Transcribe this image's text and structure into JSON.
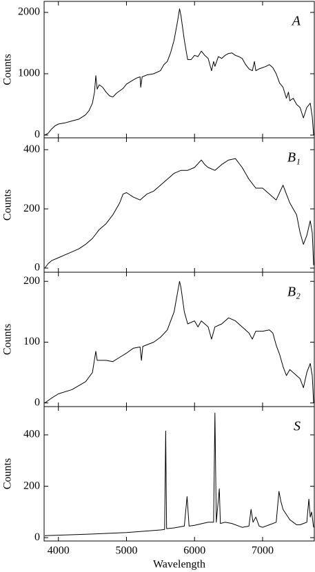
{
  "chart_data": [
    {
      "type": "line",
      "label": "A",
      "ylabel": "Counts",
      "color": "#000000",
      "ylim": [
        -45,
        2180
      ],
      "yticks": [
        0,
        1000,
        2000
      ],
      "xlim": [
        3790,
        7760
      ],
      "x": [
        3800,
        3850,
        3900,
        3950,
        4000,
        4100,
        4200,
        4300,
        4400,
        4450,
        4500,
        4530,
        4550,
        4570,
        4600,
        4650,
        4700,
        4750,
        4800,
        4850,
        4900,
        4950,
        5000,
        5100,
        5150,
        5200,
        5210,
        5230,
        5300,
        5400,
        5500,
        5550,
        5600,
        5650,
        5700,
        5750,
        5780,
        5800,
        5850,
        5880,
        5900,
        5950,
        6000,
        6050,
        6100,
        6150,
        6200,
        6250,
        6280,
        6300,
        6350,
        6400,
        6450,
        6500,
        6550,
        6600,
        6650,
        6700,
        6750,
        6800,
        6850,
        6880,
        6900,
        6950,
        7000,
        7050,
        7100,
        7150,
        7200,
        7250,
        7300,
        7350,
        7380,
        7400,
        7450,
        7500,
        7550,
        7600,
        7650,
        7700,
        7730,
        7750
      ],
      "values": [
        0,
        30,
        100,
        150,
        180,
        200,
        230,
        260,
        330,
        400,
        520,
        700,
        970,
        750,
        820,
        780,
        700,
        640,
        620,
        680,
        720,
        760,
        830,
        900,
        930,
        950,
        780,
        950,
        980,
        1000,
        1050,
        1150,
        1200,
        1350,
        1550,
        1850,
        2060,
        1950,
        1550,
        1350,
        1230,
        1230,
        1300,
        1280,
        1370,
        1300,
        1250,
        1050,
        1200,
        1120,
        1280,
        1250,
        1300,
        1330,
        1340,
        1300,
        1280,
        1250,
        1150,
        1080,
        1050,
        1200,
        1050,
        1080,
        1100,
        1120,
        1150,
        1100,
        1000,
        850,
        780,
        600,
        700,
        560,
        600,
        500,
        450,
        280,
        450,
        520,
        300,
        0
      ]
    },
    {
      "type": "line",
      "label": "B₁",
      "ylabel": "Counts",
      "color": "#000000",
      "ylim": [
        -14,
        440
      ],
      "yticks": [
        0,
        200,
        400
      ],
      "xlim": [
        3790,
        7760
      ],
      "x": [
        3800,
        3850,
        3900,
        4000,
        4100,
        4200,
        4300,
        4400,
        4500,
        4600,
        4700,
        4800,
        4900,
        4950,
        5000,
        5100,
        5200,
        5300,
        5400,
        5500,
        5600,
        5700,
        5800,
        5900,
        6000,
        6100,
        6150,
        6200,
        6300,
        6400,
        6500,
        6600,
        6700,
        6800,
        6900,
        7000,
        7100,
        7200,
        7300,
        7350,
        7400,
        7500,
        7550,
        7600,
        7650,
        7700,
        7730,
        7750
      ],
      "values": [
        0,
        15,
        25,
        35,
        45,
        55,
        65,
        80,
        100,
        130,
        150,
        180,
        220,
        250,
        255,
        240,
        230,
        250,
        260,
        280,
        300,
        320,
        330,
        330,
        340,
        365,
        350,
        340,
        330,
        350,
        365,
        370,
        340,
        300,
        270,
        270,
        250,
        230,
        280,
        250,
        220,
        180,
        120,
        80,
        110,
        160,
        120,
        10
      ]
    },
    {
      "type": "line",
      "label": "B₂",
      "ylabel": "Counts",
      "color": "#000000",
      "ylim": [
        -6,
        215
      ],
      "yticks": [
        0,
        100,
        200
      ],
      "xlim": [
        3790,
        7760
      ],
      "x": [
        3800,
        3900,
        4000,
        4200,
        4400,
        4500,
        4550,
        4570,
        4600,
        4700,
        4800,
        4900,
        5000,
        5100,
        5200,
        5220,
        5240,
        5400,
        5500,
        5600,
        5700,
        5780,
        5800,
        5850,
        5900,
        6000,
        6050,
        6100,
        6200,
        6250,
        6300,
        6400,
        6500,
        6600,
        6700,
        6800,
        6850,
        6900,
        7000,
        7100,
        7150,
        7200,
        7250,
        7300,
        7350,
        7400,
        7500,
        7550,
        7600,
        7650,
        7700,
        7730,
        7750
      ],
      "values": [
        0,
        8,
        15,
        22,
        35,
        50,
        85,
        70,
        70,
        70,
        68,
        75,
        82,
        90,
        92,
        70,
        93,
        100,
        108,
        120,
        150,
        200,
        190,
        150,
        130,
        135,
        125,
        135,
        125,
        105,
        125,
        130,
        140,
        135,
        125,
        115,
        105,
        118,
        118,
        120,
        115,
        95,
        80,
        60,
        45,
        55,
        45,
        40,
        25,
        50,
        65,
        45,
        0
      ]
    },
    {
      "type": "line",
      "label": "S",
      "ylabel": "Counts",
      "xlabel": "Wavelength",
      "color": "#000000",
      "ylim": [
        -13,
        510
      ],
      "yticks": [
        0,
        200,
        400
      ],
      "xlim": [
        3790,
        7760
      ],
      "xticks": [
        4000,
        5000,
        6000,
        7000
      ],
      "x": [
        3800,
        4500,
        5000,
        5500,
        5560,
        5577,
        5590,
        5700,
        5850,
        5890,
        5920,
        6000,
        6200,
        6280,
        6300,
        6320,
        6364,
        6380,
        6450,
        6550,
        6700,
        6800,
        6830,
        6860,
        6900,
        6950,
        7000,
        7100,
        7200,
        7240,
        7270,
        7300,
        7350,
        7400,
        7450,
        7500,
        7550,
        7600,
        7650,
        7680,
        7700,
        7720,
        7740,
        7750
      ],
      "values": [
        8,
        14,
        20,
        30,
        32,
        415,
        35,
        38,
        45,
        160,
        45,
        48,
        60,
        60,
        485,
        60,
        190,
        55,
        60,
        55,
        40,
        45,
        110,
        60,
        80,
        45,
        40,
        50,
        60,
        180,
        140,
        110,
        90,
        70,
        60,
        50,
        50,
        55,
        60,
        150,
        80,
        100,
        60,
        40
      ]
    }
  ]
}
